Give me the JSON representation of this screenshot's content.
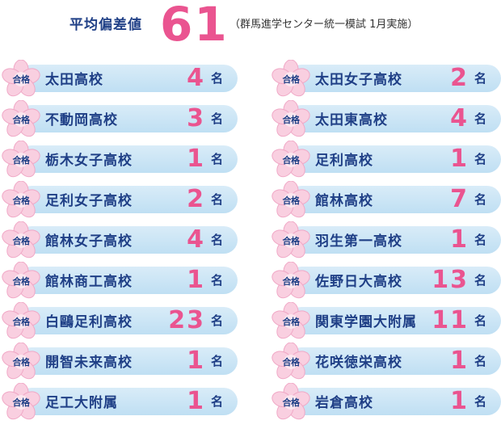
{
  "header": {
    "label": "平均偏差値",
    "value": "61",
    "note": "（群馬進学センター統一模試 1月実施）"
  },
  "badge_text": "合格",
  "unit": "名",
  "colors": {
    "navy": "#1f3f86",
    "pink": "#ea5490",
    "pill": "#c9e5f5",
    "petal": "#f8c9dc"
  },
  "icons": {
    "badge": "sakura-flower-icon"
  },
  "left_column": [
    {
      "school": "太田高校",
      "count": "4"
    },
    {
      "school": "不動岡高校",
      "count": "3"
    },
    {
      "school": "栃木女子高校",
      "count": "1"
    },
    {
      "school": "足利女子高校",
      "count": "2"
    },
    {
      "school": "館林女子高校",
      "count": "4"
    },
    {
      "school": "館林商工高校",
      "count": "1"
    },
    {
      "school": "白鷗足利高校",
      "count": "23"
    },
    {
      "school": "開智未来高校",
      "count": "1"
    },
    {
      "school": "足工大附属",
      "count": "1"
    }
  ],
  "right_column": [
    {
      "school": "太田女子高校",
      "count": "2"
    },
    {
      "school": "太田東高校",
      "count": "4"
    },
    {
      "school": "足利高校",
      "count": "1"
    },
    {
      "school": "館林高校",
      "count": "7"
    },
    {
      "school": "羽生第一高校",
      "count": "1"
    },
    {
      "school": "佐野日大高校",
      "count": "13"
    },
    {
      "school": "関東学園大附属",
      "count": "11"
    },
    {
      "school": "花咲徳栄高校",
      "count": "1"
    },
    {
      "school": "岩倉高校",
      "count": "1"
    }
  ]
}
